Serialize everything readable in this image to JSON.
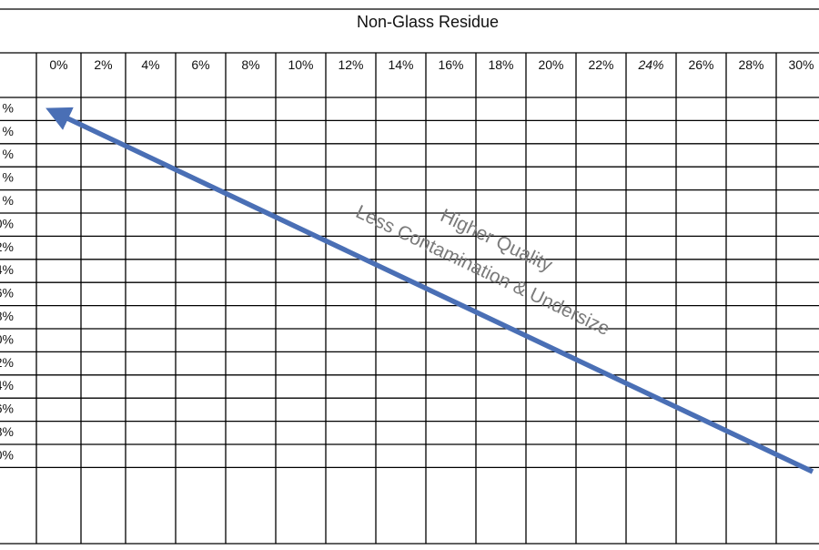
{
  "title": "Non-Glass Residue",
  "columns": [
    "0%",
    "2%",
    "4%",
    "6%",
    "8%",
    "10%",
    "12%",
    "14%",
    "16%",
    "18%",
    "20%",
    "22%",
    "24%",
    "26%",
    "28%",
    "30%"
  ],
  "rows": [
    "%",
    "%",
    "%",
    "%",
    "%",
    "0%",
    "2%",
    "4%",
    "6%",
    "8%",
    "0%",
    "2%",
    "4%",
    "6%",
    "8%",
    "0%"
  ],
  "annotations": {
    "upper": "Higher Quality",
    "lower": "Less Contamination & Undersize"
  }
}
